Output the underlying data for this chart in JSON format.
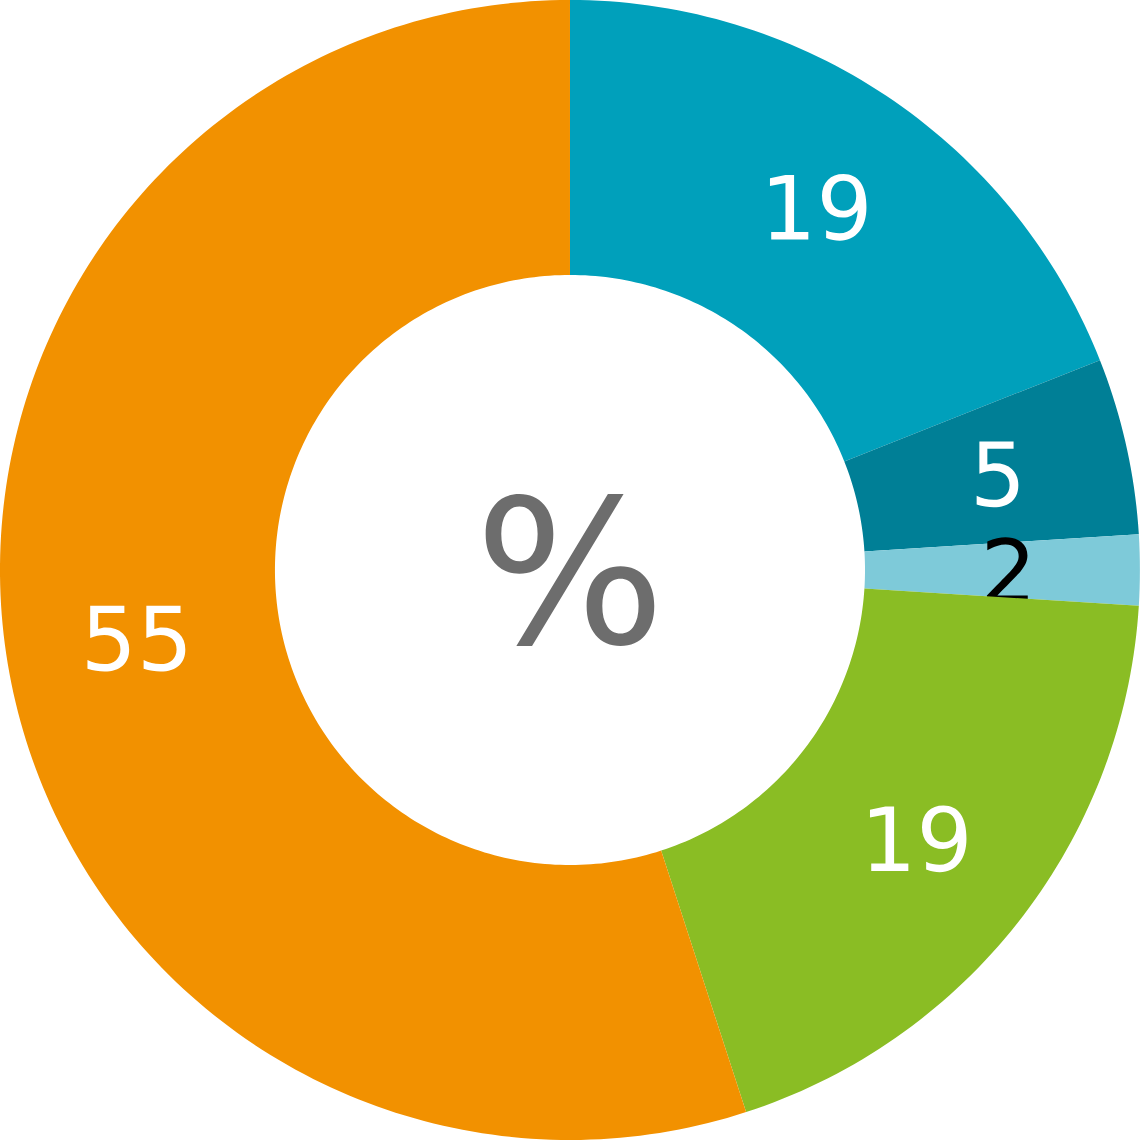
{
  "chart_data": {
    "type": "donut",
    "categories": [
      null,
      null,
      null,
      null,
      null
    ],
    "values": [
      19,
      5,
      2,
      19,
      55
    ],
    "colors": [
      "#00a0bb",
      "#007f96",
      "#7ecad9",
      "#8abd24",
      "#f29100"
    ],
    "data_labels": true,
    "annotations": [
      "%"
    ]
  }
}
